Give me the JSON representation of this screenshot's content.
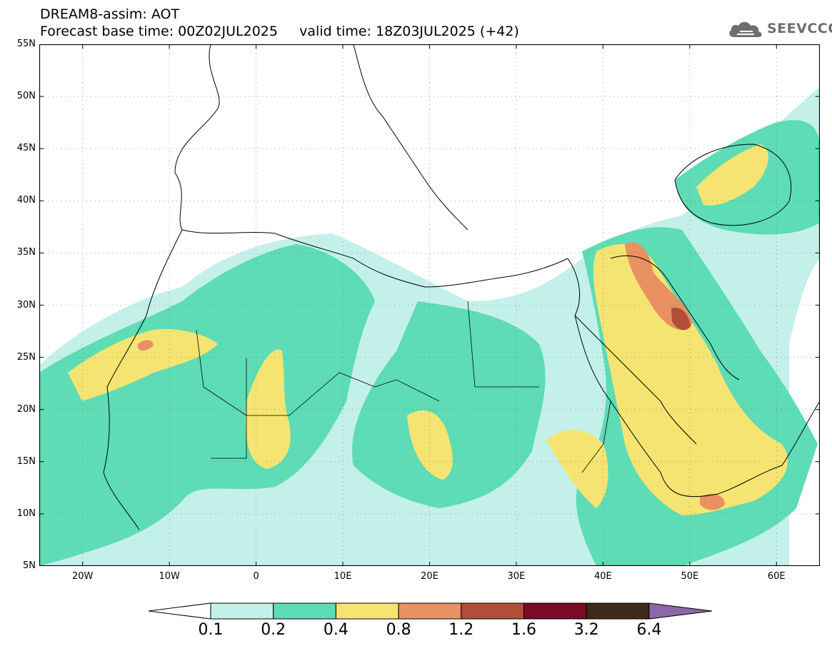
{
  "header": {
    "line1": "DREAM8-assim: AOT",
    "line2": "Forecast base time: 00Z02JUL2025     valid time: 18Z03JUL2025 (+42)"
  },
  "logo": {
    "text": "SEEVCCC",
    "icon": "cloud-icon",
    "color": "#6e6e6e"
  },
  "map": {
    "projection": "lat-lon",
    "lon_range": [
      -25,
      65
    ],
    "lat_range": [
      5,
      55
    ],
    "lat_ticks": [
      "5N",
      "10N",
      "15N",
      "20N",
      "25N",
      "30N",
      "35N",
      "40N",
      "45N",
      "50N",
      "55N"
    ],
    "lon_ticks": [
      "20W",
      "10W",
      "0",
      "10E",
      "20E",
      "30E",
      "40E",
      "50E",
      "60E"
    ],
    "gridlines": "dotted"
  },
  "colorbar": {
    "levels": [
      "0.1",
      "0.2",
      "0.4",
      "0.8",
      "1.2",
      "1.6",
      "3.2",
      "6.4"
    ],
    "colors": [
      "#c4f0ea",
      "#5ddcb6",
      "#f5e471",
      "#ea9163",
      "#b04e3a",
      "#7c0a27",
      "#3e2a1a",
      "#8b69a8"
    ],
    "under_color": "#ffffff"
  }
}
